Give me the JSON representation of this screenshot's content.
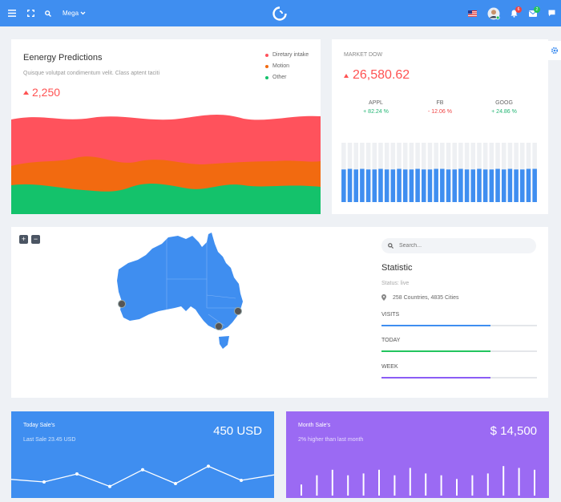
{
  "header": {
    "mega_label": "Mega",
    "notifications_count": "6",
    "messages_count": "2",
    "colors": {
      "bar": "#3f8ef0",
      "notif_badge": "#ef4444",
      "msg_badge": "#22c55e"
    }
  },
  "energy": {
    "title": "Eenergy Predictions",
    "subtitle": "Quisque volutpat condimentum velit. Class aptent taciti",
    "value": "2,250",
    "legend": [
      {
        "label": "Diretary intake",
        "color": "#ff525c"
      },
      {
        "label": "Motion",
        "color": "#f26a10"
      },
      {
        "label": "Other",
        "color": "#14c26b"
      }
    ]
  },
  "market": {
    "title": "MARKET DOW",
    "value": "26,580.62",
    "tickers": [
      {
        "name": "APPL",
        "change": "+ 82.24 %",
        "color": "#22b573"
      },
      {
        "name": "FB",
        "change": "- 12.06 %",
        "color": "#ef4444"
      },
      {
        "name": "GOOG",
        "change": "+ 24.86 %",
        "color": "#22b573"
      }
    ],
    "bar_fill_fractions": [
      0.55,
      0.56,
      0.55,
      0.56,
      0.55,
      0.55,
      0.56,
      0.55,
      0.55,
      0.56,
      0.55,
      0.55,
      0.56,
      0.55,
      0.55,
      0.56,
      0.56,
      0.55,
      0.55,
      0.56,
      0.55,
      0.55,
      0.56,
      0.55,
      0.55,
      0.56,
      0.55,
      0.56,
      0.55,
      0.55,
      0.56,
      0.56
    ],
    "bar_color": "#3f8ef0",
    "bar_bg_color": "#eef0f3"
  },
  "map": {
    "zoom_in": "+",
    "zoom_out": "−",
    "land_color": "#3f8ef0"
  },
  "statistic": {
    "search_placeholder": "Search...",
    "title": "Statistic",
    "status": "Status: live",
    "location": "258 Countries, 4835 Cities",
    "bars": [
      {
        "label": "VISITS",
        "fraction": 0.7,
        "color": "#3f8ef0"
      },
      {
        "label": "TODAY",
        "fraction": 0.7,
        "color": "#22c55e"
      },
      {
        "label": "WEEK",
        "fraction": 0.7,
        "color": "#8b5cf6"
      }
    ]
  },
  "today_sales": {
    "title": "Today Sale's",
    "subtitle": "Last Sale 23.45 USD",
    "value": "450 USD",
    "color": "#3f8ef0",
    "line": [
      0.38,
      0.3,
      0.55,
      0.16,
      0.68,
      0.25,
      0.79,
      0.35,
      0.52
    ]
  },
  "month_sales": {
    "title": "Month Sale's",
    "subtitle": "2% higher than last month",
    "value": "$ 14,500",
    "color": "#9b6af3",
    "bars": [
      0.3,
      0.55,
      0.7,
      0.55,
      0.6,
      0.7,
      0.55,
      0.75,
      0.6,
      0.55,
      0.45,
      0.55,
      0.6,
      0.8,
      0.75,
      0.7
    ]
  }
}
